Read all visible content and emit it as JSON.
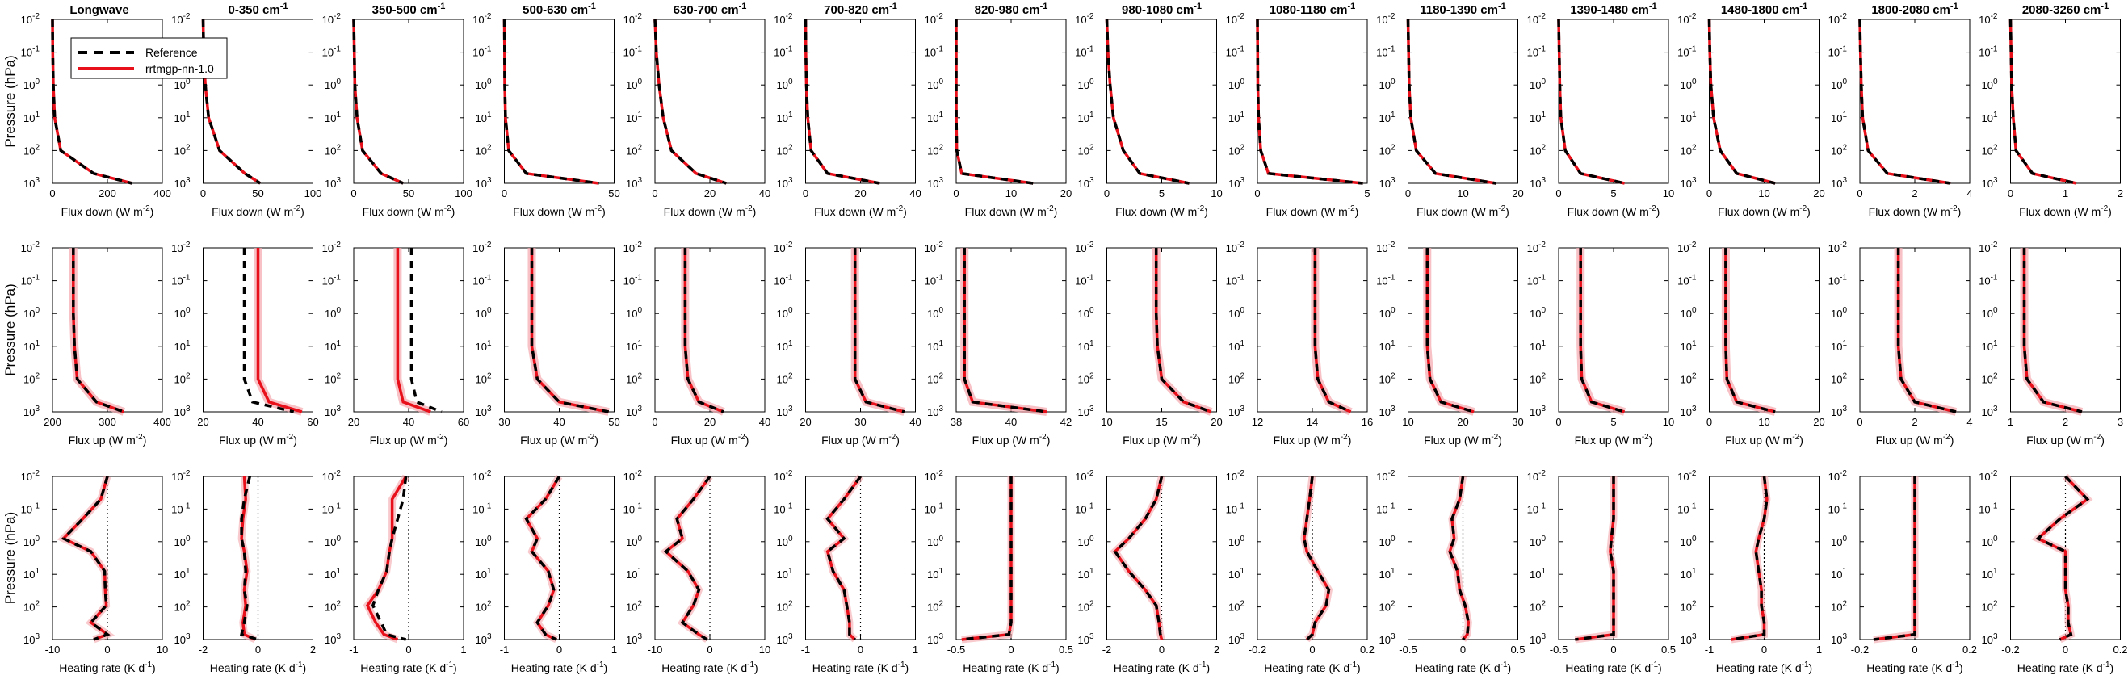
{
  "figure": {
    "legend": {
      "reference": "Reference",
      "model": "rrtmgp-nn-1.0"
    },
    "ylabel": "Pressure (hPa)",
    "xlabels": {
      "down": "Flux down (W m",
      "up": "Flux up (W m",
      "hr": "Heating rate (K d",
      "down_sup": "-2",
      "up_sup": "-2",
      "hr_sup": "-1",
      "close": ")"
    },
    "colors": {
      "reference": "#000000",
      "model": "#e8111b",
      "spread": "#f4a6ac",
      "zero_line": "#000000"
    }
  },
  "chart_data": {
    "type": "line",
    "yaxis": {
      "scale": "log",
      "reversed": true,
      "lim": [
        0.01,
        1000
      ],
      "ticks": [
        "10",
        "10",
        "10",
        "10",
        "10",
        "10"
      ],
      "tick_exponents": [
        "-2",
        "-1",
        "0",
        "1",
        "2",
        "3"
      ]
    },
    "panels": [
      {
        "title": "Longwave",
        "down_xlim": [
          0,
          400
        ],
        "down_ticks": [
          "0",
          "200",
          "400"
        ],
        "up_xlim": [
          200,
          400
        ],
        "up_ticks": [
          "200",
          "300",
          "400"
        ],
        "hr_xlim": [
          -10,
          10
        ],
        "hr_ticks": [
          "-10",
          "0",
          "10"
        ],
        "down_ref": [
          0,
          1,
          3,
          8,
          30,
          150,
          290
        ],
        "up_ref": [
          238,
          238,
          238,
          240,
          245,
          280,
          330
        ],
        "up_model": [
          238,
          238,
          238,
          240,
          245,
          280,
          330
        ],
        "hr_ref": [
          0,
          -1.2,
          -4.5,
          -8,
          -3,
          -0.5,
          -0.4,
          -0.2,
          -3,
          0,
          -2.5
        ],
        "hr_model": [
          0,
          -1.2,
          -4.5,
          -8,
          -3,
          -0.5,
          -0.4,
          -0.2,
          -3,
          0,
          -2.5
        ]
      },
      {
        "title": "0-350 cm",
        "title_sup": "-1",
        "down_xlim": [
          0,
          100
        ],
        "down_ticks": [
          "0",
          "50",
          "100"
        ],
        "up_xlim": [
          20,
          60
        ],
        "up_ticks": [
          "20",
          "40",
          "60"
        ],
        "hr_xlim": [
          -2,
          2
        ],
        "hr_ticks": [
          "-2",
          "0",
          "2"
        ],
        "down_ref": [
          0,
          0.5,
          2,
          5,
          15,
          38,
          52
        ],
        "up_ref": [
          35,
          35,
          35,
          35,
          35,
          38,
          53
        ],
        "up_model": [
          40,
          40,
          40,
          40,
          40,
          44,
          56
        ],
        "hr_ref": [
          -0.3,
          -0.5,
          -0.6,
          -0.6,
          -0.5,
          -0.45,
          -0.5,
          -0.4,
          -0.5,
          -0.6,
          0
        ],
        "hr_model": [
          -0.5,
          -0.45,
          -0.55,
          -0.6,
          -0.5,
          -0.4,
          -0.5,
          -0.45,
          -0.55,
          -0.5,
          -0.1
        ]
      },
      {
        "title": "350-500 cm",
        "title_sup": "-1",
        "down_xlim": [
          0,
          100
        ],
        "down_ticks": [
          "0",
          "50",
          "100"
        ],
        "up_xlim": [
          20,
          60
        ],
        "up_ticks": [
          "20",
          "40",
          "60"
        ],
        "hr_xlim": [
          -1,
          1
        ],
        "hr_ticks": [
          "-1",
          "0",
          "1"
        ],
        "down_ref": [
          0,
          0.5,
          1,
          3,
          8,
          25,
          45
        ],
        "up_ref": [
          41,
          41,
          41,
          41,
          41,
          43,
          52
        ],
        "up_model": [
          36,
          36,
          36,
          36,
          36,
          38,
          48
        ],
        "hr_ref": [
          -0.05,
          -0.1,
          -0.2,
          -0.3,
          -0.35,
          -0.4,
          -0.55,
          -0.65,
          -0.5,
          -0.4,
          -0.05
        ],
        "hr_model": [
          -0.05,
          -0.3,
          -0.3,
          -0.3,
          -0.35,
          -0.4,
          -0.55,
          -0.75,
          -0.6,
          -0.45,
          -0.2
        ]
      },
      {
        "title": "500-630 cm",
        "title_sup": "-1",
        "down_xlim": [
          0,
          50
        ],
        "down_ticks": [
          "0",
          "50"
        ],
        "up_xlim": [
          30,
          50
        ],
        "up_ticks": [
          "30",
          "40",
          "50"
        ],
        "hr_xlim": [
          -1,
          1
        ],
        "hr_ticks": [
          "-1",
          "0",
          "1"
        ],
        "down_ref": [
          0,
          0.1,
          0.2,
          0.5,
          2,
          10,
          43
        ],
        "up_ref": [
          35,
          35,
          35,
          35,
          36,
          40,
          49
        ],
        "up_model": [
          35,
          35,
          35,
          35,
          36,
          40,
          49
        ],
        "hr_ref": [
          0,
          -0.25,
          -0.6,
          -0.4,
          -0.5,
          -0.2,
          -0.1,
          -0.2,
          -0.4,
          -0.25,
          -0.05
        ],
        "hr_model": [
          0,
          -0.25,
          -0.6,
          -0.4,
          -0.5,
          -0.2,
          -0.1,
          -0.2,
          -0.4,
          -0.25,
          -0.05
        ]
      },
      {
        "title": "630-700 cm",
        "title_sup": "-1",
        "down_xlim": [
          0,
          40
        ],
        "down_ticks": [
          "0",
          "20",
          "40"
        ],
        "up_xlim": [
          0,
          40
        ],
        "up_ticks": [
          "0",
          "20",
          "40"
        ],
        "hr_xlim": [
          -10,
          10
        ],
        "hr_ticks": [
          "-10",
          "0",
          "10"
        ],
        "down_ref": [
          0,
          0.5,
          1.5,
          3,
          6,
          15,
          26
        ],
        "up_ref": [
          11,
          11,
          11,
          11,
          12,
          16,
          25
        ],
        "up_model": [
          11,
          11,
          11,
          11,
          12,
          16,
          25
        ],
        "hr_ref": [
          0,
          -3,
          -6,
          -5,
          -8,
          -4,
          -2,
          -3,
          -5,
          -2,
          -0.5
        ],
        "hr_model": [
          0,
          -3,
          -6,
          -5,
          -8,
          -4,
          -2,
          -3,
          -5,
          -2,
          -0.5
        ]
      },
      {
        "title": "700-820 cm",
        "title_sup": "-1",
        "down_xlim": [
          0,
          40
        ],
        "down_ticks": [
          "0",
          "20",
          "40"
        ],
        "up_xlim": [
          20,
          40
        ],
        "up_ticks": [
          "20",
          "30",
          "40"
        ],
        "hr_xlim": [
          -1,
          1
        ],
        "hr_ticks": [
          "-1",
          "0",
          "1"
        ],
        "down_ref": [
          0,
          0.1,
          0.3,
          0.8,
          2,
          8,
          27
        ],
        "up_ref": [
          29,
          29,
          29,
          29,
          29,
          31,
          38
        ],
        "up_model": [
          29,
          29,
          29,
          29,
          29,
          31,
          38
        ],
        "hr_ref": [
          0,
          -0.3,
          -0.6,
          -0.3,
          -0.6,
          -0.5,
          -0.3,
          -0.25,
          -0.2,
          -0.2,
          -0.1
        ],
        "hr_model": [
          0,
          -0.3,
          -0.6,
          -0.3,
          -0.6,
          -0.5,
          -0.3,
          -0.25,
          -0.2,
          -0.2,
          -0.1
        ]
      },
      {
        "title": "820-980 cm",
        "title_sup": "-1",
        "down_xlim": [
          0,
          20
        ],
        "down_ticks": [
          "0",
          "10",
          "20"
        ],
        "up_xlim": [
          38,
          42
        ],
        "up_ticks": [
          "38",
          "40",
          "42"
        ],
        "hr_xlim": [
          -0.5,
          0.5
        ],
        "hr_ticks": [
          "-0.5",
          "0",
          "0.5"
        ],
        "down_ref": [
          0,
          0,
          0,
          0.02,
          0.1,
          1,
          14
        ],
        "up_ref": [
          38.3,
          38.3,
          38.3,
          38.3,
          38.3,
          38.6,
          41.3
        ],
        "up_model": [
          38.3,
          38.3,
          38.3,
          38.3,
          38.3,
          38.6,
          41.3
        ],
        "hr_ref": [
          0,
          0,
          0,
          0,
          0,
          0,
          0,
          0,
          0,
          -0.02,
          -0.45
        ],
        "hr_model": [
          0,
          0,
          0,
          0,
          0,
          0,
          0,
          0,
          0,
          -0.02,
          -0.45
        ]
      },
      {
        "title": "980-1080 cm",
        "title_sup": "-1",
        "down_xlim": [
          0,
          10
        ],
        "down_ticks": [
          "0",
          "5",
          "10"
        ],
        "up_xlim": [
          10,
          20
        ],
        "up_ticks": [
          "10",
          "15",
          "20"
        ],
        "hr_xlim": [
          -2,
          2
        ],
        "hr_ticks": [
          "-2",
          "0",
          "2"
        ],
        "down_ref": [
          0,
          0.1,
          0.3,
          0.6,
          1.5,
          3,
          7.5
        ],
        "up_ref": [
          14.5,
          14.5,
          14.5,
          14.6,
          15,
          17,
          19.5
        ],
        "up_model": [
          14.5,
          14.5,
          14.5,
          14.6,
          15,
          17,
          19.5
        ],
        "hr_ref": [
          0,
          -0.2,
          -0.6,
          -1.2,
          -1.7,
          -1.2,
          -0.6,
          -0.2,
          -0.1,
          -0.05,
          0
        ],
        "hr_model": [
          0,
          -0.2,
          -0.6,
          -1.2,
          -1.7,
          -1.2,
          -0.6,
          -0.2,
          -0.1,
          -0.05,
          0
        ]
      },
      {
        "title": "1080-1180 cm",
        "title_sup": "-1",
        "down_xlim": [
          0,
          5
        ],
        "down_ticks": [
          "0",
          "5"
        ],
        "up_xlim": [
          12,
          16
        ],
        "up_ticks": [
          "12",
          "14",
          "16"
        ],
        "hr_xlim": [
          -0.2,
          0.2
        ],
        "hr_ticks": [
          "-0.2",
          "0",
          "0.2"
        ],
        "down_ref": [
          0,
          0.01,
          0.02,
          0.05,
          0.15,
          0.5,
          4.8
        ],
        "up_ref": [
          14.1,
          14.1,
          14.1,
          14.1,
          14.2,
          14.6,
          15.4
        ],
        "up_model": [
          14.1,
          14.1,
          14.1,
          14.1,
          14.2,
          14.6,
          15.4
        ],
        "hr_ref": [
          0,
          -0.01,
          -0.02,
          -0.03,
          -0.02,
          0.02,
          0.06,
          0.05,
          0.01,
          0,
          -0.02
        ],
        "hr_model": [
          0,
          -0.01,
          -0.02,
          -0.03,
          -0.02,
          0.02,
          0.06,
          0.05,
          0.01,
          0,
          -0.02
        ]
      },
      {
        "title": "1180-1390 cm",
        "title_sup": "-1",
        "down_xlim": [
          0,
          20
        ],
        "down_ticks": [
          "0",
          "10",
          "20"
        ],
        "up_xlim": [
          10,
          30
        ],
        "up_ticks": [
          "10",
          "20",
          "30"
        ],
        "hr_xlim": [
          -0.5,
          0.5
        ],
        "hr_ticks": [
          "-0.5",
          "0",
          "0.5"
        ],
        "down_ref": [
          0,
          0.1,
          0.2,
          0.5,
          1.5,
          5,
          16
        ],
        "up_ref": [
          13.5,
          13.5,
          13.5,
          13.5,
          14,
          16,
          22
        ],
        "up_model": [
          13.5,
          13.5,
          13.5,
          13.5,
          14,
          16,
          22
        ],
        "hr_ref": [
          0,
          -0.03,
          -0.1,
          -0.08,
          -0.12,
          -0.05,
          -0.03,
          0.02,
          0.05,
          0.04,
          0
        ],
        "hr_model": [
          0,
          -0.03,
          -0.1,
          -0.08,
          -0.12,
          -0.05,
          -0.03,
          0.02,
          0.05,
          0.04,
          0
        ]
      },
      {
        "title": "1390-1480 cm",
        "title_sup": "-1",
        "down_xlim": [
          0,
          10
        ],
        "down_ticks": [
          "0",
          "5",
          "10"
        ],
        "up_xlim": [
          0,
          10
        ],
        "up_ticks": [
          "0",
          "5",
          "10"
        ],
        "hr_xlim": [
          -0.5,
          0.5
        ],
        "hr_ticks": [
          "-0.5",
          "0",
          "0.5"
        ],
        "down_ref": [
          0,
          0.05,
          0.1,
          0.2,
          0.6,
          2,
          6
        ],
        "up_ref": [
          2,
          2,
          2,
          2,
          2.1,
          3,
          6
        ],
        "up_model": [
          2,
          2,
          2,
          2,
          2.1,
          3,
          6
        ],
        "hr_ref": [
          0,
          0,
          0,
          -0.02,
          -0.03,
          0,
          0,
          0,
          0,
          0,
          -0.35
        ],
        "hr_model": [
          0,
          0,
          0,
          -0.02,
          -0.03,
          0,
          0,
          0,
          0,
          0,
          -0.35
        ]
      },
      {
        "title": "1480-1800 cm",
        "title_sup": "-1",
        "down_xlim": [
          0,
          20
        ],
        "down_ticks": [
          "0",
          "10",
          "20"
        ],
        "up_xlim": [
          0,
          20
        ],
        "up_ticks": [
          "0",
          "10",
          "20"
        ],
        "hr_xlim": [
          -1,
          1
        ],
        "hr_ticks": [
          "-1",
          "0",
          "1"
        ],
        "down_ref": [
          0,
          0.1,
          0.3,
          0.8,
          2,
          5,
          12
        ],
        "up_ref": [
          3,
          3,
          3,
          3,
          3.2,
          5,
          12
        ],
        "up_model": [
          3,
          3,
          3,
          3,
          3.2,
          5,
          12
        ],
        "hr_ref": [
          0,
          0.05,
          0,
          -0.1,
          -0.15,
          -0.1,
          -0.05,
          -0.05,
          0,
          0,
          -0.6
        ],
        "hr_model": [
          0,
          0.05,
          0,
          -0.1,
          -0.15,
          -0.1,
          -0.05,
          -0.05,
          0,
          0,
          -0.6
        ]
      },
      {
        "title": "1800-2080 cm",
        "title_sup": "-1",
        "down_xlim": [
          0,
          4
        ],
        "down_ticks": [
          "0",
          "2",
          "4"
        ],
        "up_xlim": [
          0,
          4
        ],
        "up_ticks": [
          "0",
          "2",
          "4"
        ],
        "hr_xlim": [
          -0.2,
          0.2
        ],
        "hr_ticks": [
          "-0.2",
          "0",
          "0.2"
        ],
        "down_ref": [
          0,
          0.02,
          0.05,
          0.1,
          0.3,
          1,
          3.3
        ],
        "up_ref": [
          1.4,
          1.4,
          1.4,
          1.4,
          1.5,
          2,
          3.5
        ],
        "up_model": [
          1.4,
          1.4,
          1.4,
          1.4,
          1.5,
          2,
          3.5
        ],
        "hr_ref": [
          0,
          0,
          0,
          0,
          0,
          0,
          0,
          0,
          0,
          0,
          -0.15
        ],
        "hr_model": [
          0,
          0,
          0,
          0,
          0,
          0,
          0,
          0,
          0,
          0,
          -0.15
        ]
      },
      {
        "title": "2080-3260 cm",
        "title_sup": "-1",
        "down_xlim": [
          0,
          2
        ],
        "down_ticks": [
          "0",
          "1",
          "2"
        ],
        "up_xlim": [
          1,
          3
        ],
        "up_ticks": [
          "1",
          "2",
          "3"
        ],
        "hr_xlim": [
          -0.2,
          0.2
        ],
        "hr_ticks": [
          "-0.2",
          "0",
          "0.2"
        ],
        "down_ref": [
          0,
          0.01,
          0.02,
          0.05,
          0.1,
          0.4,
          1.2
        ],
        "up_ref": [
          1.25,
          1.25,
          1.25,
          1.25,
          1.3,
          1.6,
          2.3
        ],
        "up_model": [
          1.25,
          1.25,
          1.25,
          1.25,
          1.3,
          1.6,
          2.3
        ],
        "hr_ref": [
          0,
          0.08,
          -0.02,
          -0.1,
          0,
          0,
          0,
          0.01,
          0.01,
          0.02,
          -0.02
        ],
        "hr_model": [
          0,
          0.08,
          -0.02,
          -0.1,
          0,
          0,
          0,
          0.01,
          0.01,
          0.02,
          -0.02
        ]
      }
    ]
  }
}
